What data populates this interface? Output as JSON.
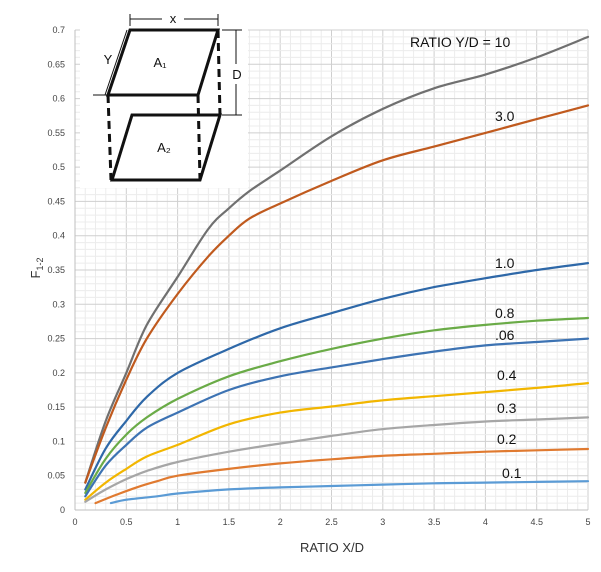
{
  "chart_data": {
    "type": "line",
    "xlabel": "RATIO X/D",
    "ylabel": "F",
    "ylabel_sub": "1-2",
    "xlim": [
      0,
      5
    ],
    "ylim": [
      0,
      0.7
    ],
    "x_ticks": [
      "0",
      "0.5",
      "1",
      "1.5",
      "2",
      "2.5",
      "3",
      "3.5",
      "4",
      "4.5",
      "5"
    ],
    "y_ticks": [
      "0",
      "0.05",
      "0.1",
      "0.15",
      "0.2",
      "0.25",
      "0.3",
      "0.35",
      "0.4",
      "0.45",
      "0.5",
      "0.55",
      "0.6",
      "0.65",
      "0.7"
    ],
    "grid": true,
    "series": [
      {
        "label": "RATIO Y/D = 10",
        "color": "#707070",
        "points": [
          [
            0.1,
            0.04
          ],
          [
            0.3,
            0.13
          ],
          [
            0.5,
            0.2
          ],
          [
            0.7,
            0.27
          ],
          [
            1.0,
            0.34
          ],
          [
            1.3,
            0.41
          ],
          [
            1.5,
            0.44
          ],
          [
            1.7,
            0.465
          ],
          [
            2.0,
            0.495
          ],
          [
            2.5,
            0.545
          ],
          [
            3.0,
            0.585
          ],
          [
            3.5,
            0.615
          ],
          [
            4.0,
            0.635
          ],
          [
            4.5,
            0.66
          ],
          [
            5.0,
            0.69
          ]
        ]
      },
      {
        "label": "3.0",
        "color": "#c05a1e",
        "points": [
          [
            0.1,
            0.04
          ],
          [
            0.3,
            0.12
          ],
          [
            0.5,
            0.19
          ],
          [
            0.7,
            0.25
          ],
          [
            1.0,
            0.315
          ],
          [
            1.3,
            0.37
          ],
          [
            1.5,
            0.4
          ],
          [
            1.7,
            0.425
          ],
          [
            2.0,
            0.447
          ],
          [
            2.5,
            0.48
          ],
          [
            3.0,
            0.51
          ],
          [
            3.5,
            0.53
          ],
          [
            4.0,
            0.55
          ],
          [
            4.5,
            0.57
          ],
          [
            5.0,
            0.59
          ]
        ]
      },
      {
        "label": "1.0",
        "color": "#2e68a8",
        "points": [
          [
            0.1,
            0.03
          ],
          [
            0.3,
            0.09
          ],
          [
            0.5,
            0.13
          ],
          [
            0.7,
            0.165
          ],
          [
            1.0,
            0.2
          ],
          [
            1.5,
            0.235
          ],
          [
            2.0,
            0.265
          ],
          [
            2.5,
            0.287
          ],
          [
            3.0,
            0.308
          ],
          [
            3.5,
            0.325
          ],
          [
            4.0,
            0.338
          ],
          [
            4.5,
            0.35
          ],
          [
            5.0,
            0.36
          ]
        ]
      },
      {
        "label": "0.8",
        "color": "#6aab47",
        "points": [
          [
            0.1,
            0.025
          ],
          [
            0.3,
            0.075
          ],
          [
            0.5,
            0.11
          ],
          [
            0.7,
            0.135
          ],
          [
            1.0,
            0.162
          ],
          [
            1.5,
            0.195
          ],
          [
            2.0,
            0.217
          ],
          [
            2.5,
            0.235
          ],
          [
            3.0,
            0.25
          ],
          [
            3.5,
            0.262
          ],
          [
            4.0,
            0.27
          ],
          [
            4.5,
            0.276
          ],
          [
            5.0,
            0.28
          ]
        ]
      },
      {
        "label": ".06",
        "color": "#3d73b3",
        "points": [
          [
            0.1,
            0.02
          ],
          [
            0.3,
            0.065
          ],
          [
            0.5,
            0.095
          ],
          [
            0.7,
            0.12
          ],
          [
            1.0,
            0.142
          ],
          [
            1.5,
            0.175
          ],
          [
            2.0,
            0.195
          ],
          [
            2.5,
            0.208
          ],
          [
            3.0,
            0.22
          ],
          [
            3.5,
            0.231
          ],
          [
            4.0,
            0.24
          ],
          [
            4.5,
            0.245
          ],
          [
            5.0,
            0.25
          ]
        ]
      },
      {
        "label": "0.4",
        "color": "#f2b600",
        "points": [
          [
            0.1,
            0.015
          ],
          [
            0.3,
            0.04
          ],
          [
            0.5,
            0.06
          ],
          [
            0.7,
            0.078
          ],
          [
            1.0,
            0.095
          ],
          [
            1.5,
            0.125
          ],
          [
            2.0,
            0.142
          ],
          [
            2.5,
            0.151
          ],
          [
            3.0,
            0.16
          ],
          [
            3.5,
            0.166
          ],
          [
            4.0,
            0.172
          ],
          [
            4.5,
            0.178
          ],
          [
            5.0,
            0.185
          ]
        ]
      },
      {
        "label": "0.3",
        "color": "#a6a6a6",
        "points": [
          [
            0.1,
            0.012
          ],
          [
            0.3,
            0.03
          ],
          [
            0.5,
            0.045
          ],
          [
            0.7,
            0.057
          ],
          [
            1.0,
            0.07
          ],
          [
            1.5,
            0.085
          ],
          [
            2.0,
            0.097
          ],
          [
            2.5,
            0.108
          ],
          [
            3.0,
            0.118
          ],
          [
            3.5,
            0.124
          ],
          [
            4.0,
            0.129
          ],
          [
            4.5,
            0.132
          ],
          [
            5.0,
            0.135
          ]
        ]
      },
      {
        "label": "0.2",
        "color": "#e07a30",
        "points": [
          [
            0.2,
            0.01
          ],
          [
            0.4,
            0.022
          ],
          [
            0.6,
            0.033
          ],
          [
            0.8,
            0.042
          ],
          [
            1.0,
            0.05
          ],
          [
            1.5,
            0.06
          ],
          [
            2.0,
            0.068
          ],
          [
            2.5,
            0.074
          ],
          [
            3.0,
            0.079
          ],
          [
            3.5,
            0.082
          ],
          [
            4.0,
            0.085
          ],
          [
            4.5,
            0.087
          ],
          [
            5.0,
            0.089
          ]
        ]
      },
      {
        "label": "0.1",
        "color": "#5b9bd5",
        "points": [
          [
            0.35,
            0.01
          ],
          [
            0.5,
            0.015
          ],
          [
            0.8,
            0.02
          ],
          [
            1.0,
            0.024
          ],
          [
            1.5,
            0.03
          ],
          [
            2.0,
            0.033
          ],
          [
            2.5,
            0.035
          ],
          [
            3.0,
            0.037
          ],
          [
            3.5,
            0.039
          ],
          [
            4.0,
            0.04
          ],
          [
            4.5,
            0.041
          ],
          [
            5.0,
            0.042
          ]
        ]
      }
    ],
    "annotations": {
      "x_label": "x",
      "y_label": "Y",
      "d_label": "D",
      "a1_label": "A₁",
      "a2_label": "A₂"
    }
  }
}
